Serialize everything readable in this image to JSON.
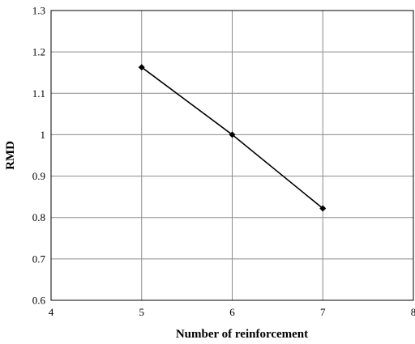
{
  "chart_data": {
    "type": "line",
    "title": "",
    "xlabel": "Number of reinforcement",
    "ylabel": "RMD",
    "xlim": [
      4,
      8
    ],
    "ylim": [
      0.6,
      1.3
    ],
    "xticks": [
      4,
      5,
      6,
      7,
      8
    ],
    "yticks": [
      0.6,
      0.7,
      0.8,
      0.9,
      1.0,
      1.1,
      1.2,
      1.3
    ],
    "xtick_labels": [
      "4",
      "5",
      "6",
      "7",
      "8"
    ],
    "ytick_labels": [
      "0.6",
      "0.7",
      "0.8",
      "0.9",
      "1",
      "1.1",
      "1.2",
      "1.3"
    ],
    "grid": true,
    "legend": false,
    "series": [
      {
        "x": [
          5,
          6,
          7
        ],
        "y": [
          1.163,
          1.0,
          0.822
        ],
        "color": "#000000",
        "marker": "diamond"
      }
    ]
  }
}
